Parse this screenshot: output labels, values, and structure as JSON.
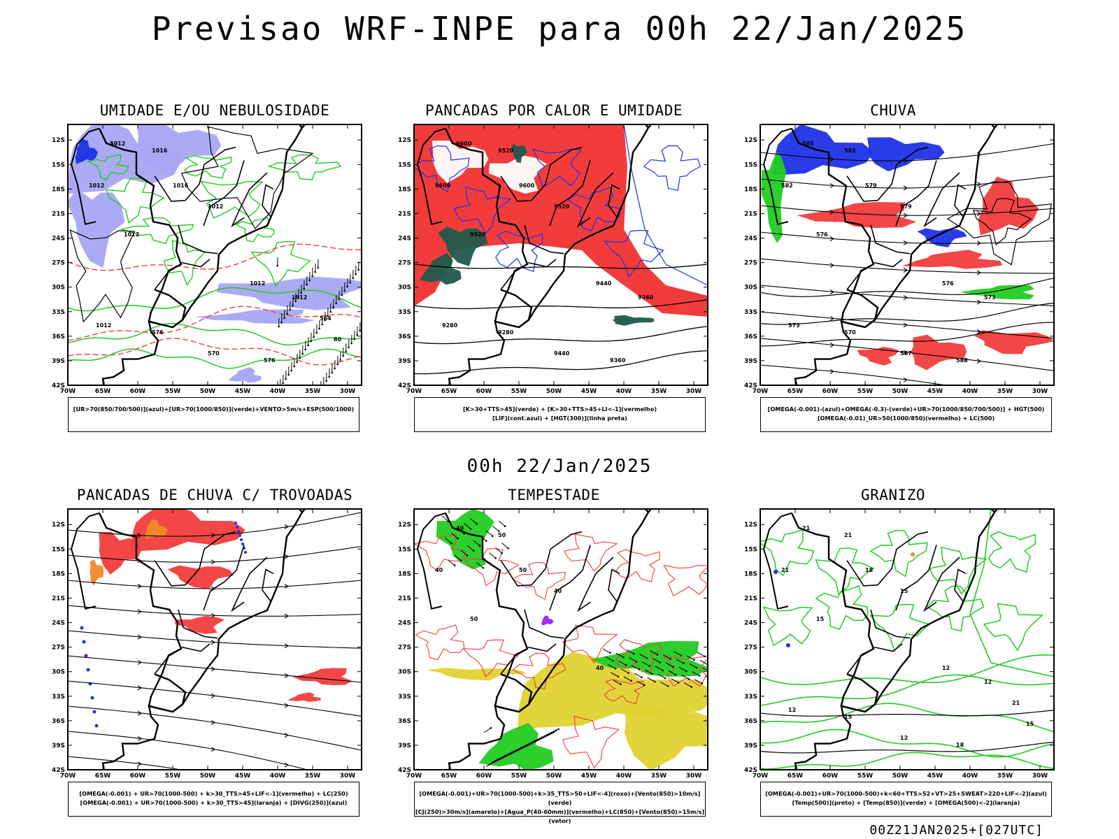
{
  "title": "Previsao WRF-INPE  para 00h 22/Jan/2025",
  "subtitle": "00h 22/Jan/2025",
  "footer": "00Z21JAN2025+[027UTC]",
  "axes": {
    "lat_labels": [
      "12S",
      "15S",
      "18S",
      "21S",
      "24S",
      "27S",
      "30S",
      "33S",
      "36S",
      "39S",
      "42S"
    ],
    "lon_labels": [
      "70W",
      "65W",
      "60W",
      "55W",
      "50W",
      "45W",
      "40W",
      "35W",
      "30W"
    ]
  },
  "colors": {
    "red": "#f23c3c",
    "green": "#22cc22",
    "blue": "#1e32e6",
    "lightblue": "#a6a6f4",
    "darkgreen": "#1e5a4c",
    "yellow": "#e0d230",
    "orange": "#ef8a28",
    "purple": "#a020f0"
  },
  "panels": [
    {
      "id": "umidade",
      "title": "UMIDADE E/OU NEBULOSIDADE",
      "legend": [
        "[UR>70(850/700/500)](azul)+[UR>70(1000/850)](verde)+VENTO>5m/s+ESP(500/1000)"
      ],
      "contour_labels": [
        "1012",
        "1016",
        "1012",
        "1016",
        "1012",
        "1012",
        "1012",
        "1012",
        "1012",
        "576",
        "570",
        "576",
        "564",
        "60",
        "50"
      ]
    },
    {
      "id": "pancadas-calor",
      "title": "PANCADAS POR CALOR E UMIDADE",
      "legend": [
        "[K>30+TTS>45](verde) + [K>30+TTS>45+LI<-1](vermelho)",
        "[LIF](cont.azul) + [HGT(300)](linha preta)"
      ],
      "contour_labels": [
        "9600",
        "9520",
        "9600",
        "9600",
        "9520",
        "9520",
        "9440",
        "9360",
        "9280",
        "9280",
        "9440",
        "9360"
      ]
    },
    {
      "id": "chuva",
      "title": "CHUVA",
      "legend": [
        "[OMEGA(-0.001)-(azul)+OMEGA(-0.3)-(verde)+UR>70(1000/850/700/500)] + HGT(500)",
        "[OMEGA(-0.01)_UR>50(1000/850)(vermelho) + LC(500)"
      ],
      "contour_labels": [
        "585",
        "582",
        "582",
        "579",
        "579",
        "576",
        "576",
        "573",
        "573",
        "570",
        "567",
        "588"
      ]
    },
    {
      "id": "pancadas-trovoadas",
      "title": "PANCADAS DE CHUVA C/ TROVOADAS",
      "legend": [
        "[OMEGA(-0.001) + UR>70(1000-500) + k>30_TTS>45+LIF<-1](vermelho) + LC(250)",
        "[OMEGA(-0.001) + UR>70(1000-500) + k>30_TTS>45](laranja) + [DIVG(250)](azul)"
      ],
      "contour_labels": []
    },
    {
      "id": "tempestade",
      "title": "TEMPESTADE",
      "legend": [
        "[OMEGA(-0.001)+UR>70(1000-500)+k>35_TTS>50+LIF<-4](roxo)+[Vento(850)>10m/s](verde)",
        "[CJ(250)>30m/s](amarelo)+[Agua_P(40-60mm)](vermelho)+LC(850)+[Vento(850)>15m/s](vetor)"
      ],
      "contour_labels": [
        "40",
        "50",
        "40",
        "50",
        "40",
        "50",
        "40"
      ]
    },
    {
      "id": "granizo",
      "title": "GRANIZO",
      "legend": [
        "[OMEGA(-0.001)+UR>70(1000-500)+k<60+TTS>52+VT>25+SWEAT>220+LIF<-2](azul)",
        "[Temp(500)](preto) + [Temp(850)](verde) + [OMEGA(500)<-2](laranja)"
      ],
      "contour_labels": [
        "21",
        "21",
        "21",
        "18",
        "15",
        "15",
        "12",
        "12",
        "12",
        "15",
        "12",
        "18",
        "21",
        "15"
      ]
    }
  ]
}
